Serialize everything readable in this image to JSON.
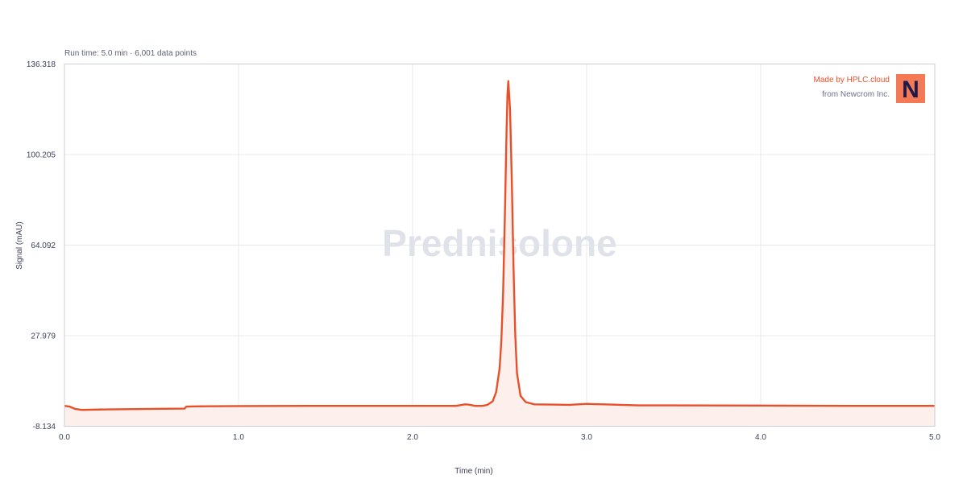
{
  "subtitle": "Run time: 5.0 min · 6,001 data points",
  "watermark": "Prednisolone",
  "branding": {
    "line1": "Made by HPLC.cloud",
    "line2": "from Newcrom Inc.",
    "logo_letter": "N",
    "logo_bg": "#f47a55",
    "logo_fg": "#1c1a4a",
    "line1_color": "#e8502a"
  },
  "colors": {
    "trace": "#e8502a",
    "fill": "#fdf0ec",
    "grid": "#e6e8ee",
    "frame": "#c9cdd8"
  },
  "chart_data": {
    "type": "line",
    "title": "",
    "xlabel": "Time (min)",
    "ylabel": "Signal (mAU)",
    "xlim": [
      0.0,
      5.0
    ],
    "ylim": [
      -8.134,
      136.318
    ],
    "x_ticks": [
      "0.0",
      "1.0",
      "2.0",
      "3.0",
      "4.0",
      "5.0"
    ],
    "y_ticks": [
      "136.318",
      "100.205",
      "64.092",
      "27.979",
      "-8.134"
    ],
    "grid": true,
    "series": [
      {
        "x": [
          0.0,
          0.03,
          0.06,
          0.1,
          0.25,
          0.5,
          0.69,
          0.7,
          0.75,
          1.0,
          1.5,
          2.0,
          2.25,
          2.3,
          2.32,
          2.36,
          2.4,
          2.43,
          2.46,
          2.48,
          2.5,
          2.51,
          2.52,
          2.53,
          2.54,
          2.545,
          2.55,
          2.56,
          2.57,
          2.58,
          2.59,
          2.6,
          2.62,
          2.65,
          2.7,
          2.8,
          2.9,
          3.0,
          3.1,
          3.3,
          3.5,
          4.0,
          4.5,
          5.0
        ],
        "y": [
          0.0,
          -0.3,
          -1.2,
          -1.6,
          -1.4,
          -1.2,
          -1.1,
          -0.3,
          -0.2,
          -0.1,
          0.0,
          0.0,
          0.0,
          0.6,
          0.5,
          0.0,
          0.0,
          0.4,
          1.8,
          5.5,
          15.0,
          26.0,
          45.0,
          75.0,
          110.0,
          124.0,
          129.5,
          118.0,
          90.0,
          55.0,
          28.0,
          13.0,
          4.0,
          1.5,
          0.6,
          0.5,
          0.4,
          0.8,
          0.6,
          0.2,
          0.2,
          0.1,
          0.0,
          0.0
        ]
      }
    ]
  }
}
